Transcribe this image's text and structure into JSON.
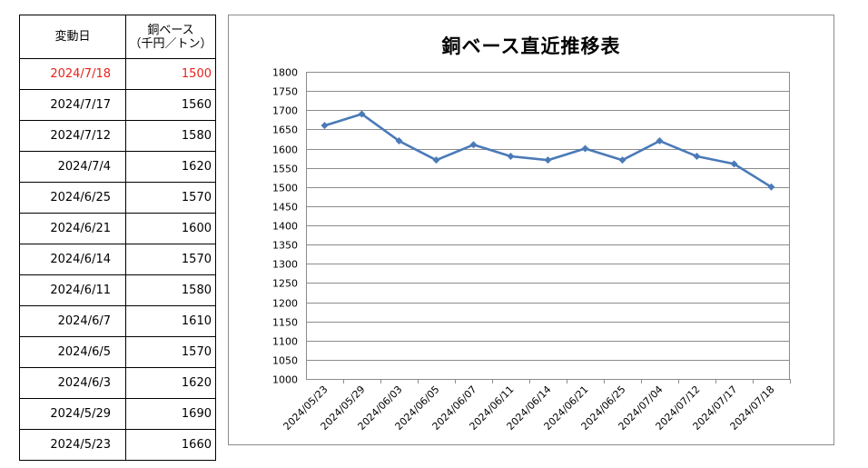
{
  "table": {
    "header_date": "変動日",
    "header_price_line1": "銅ベース",
    "header_price_line2": "（千円／トン）",
    "rows": [
      {
        "date": "2024/7/18",
        "price": "1500"
      },
      {
        "date": "2024/7/17",
        "price": "1560"
      },
      {
        "date": "2024/7/12",
        "price": "1580"
      },
      {
        "date": "2024/7/4",
        "price": "1620"
      },
      {
        "date": "2024/6/25",
        "price": "1570"
      },
      {
        "date": "2024/6/21",
        "price": "1600"
      },
      {
        "date": "2024/6/14",
        "price": "1570"
      },
      {
        "date": "2024/6/11",
        "price": "1580"
      },
      {
        "date": "2024/6/7",
        "price": "1610"
      },
      {
        "date": "2024/6/5",
        "price": "1570"
      },
      {
        "date": "2024/6/3",
        "price": "1620"
      },
      {
        "date": "2024/5/29",
        "price": "1690"
      },
      {
        "date": "2024/5/23",
        "price": "1660"
      }
    ],
    "highlight_color": "#e8211b"
  },
  "chart_data": {
    "type": "line",
    "title": "銅ベース直近推移表",
    "xlabel": "",
    "ylabel": "",
    "categories": [
      "2024/05/23",
      "2024/05/29",
      "2024/06/03",
      "2024/06/05",
      "2024/06/07",
      "2024/06/11",
      "2024/06/14",
      "2024/06/21",
      "2024/06/25",
      "2024/07/04",
      "2024/07/12",
      "2024/07/17",
      "2024/07/18"
    ],
    "series": [
      {
        "values": [
          1660,
          1690,
          1620,
          1570,
          1610,
          1580,
          1570,
          1600,
          1570,
          1620,
          1580,
          1560,
          1500
        ],
        "color": "#4a7ab8",
        "marker": "diamond"
      }
    ],
    "ylim": [
      1000,
      1800
    ],
    "ytick_step": 50,
    "grid": "horizontal",
    "legend": "none"
  }
}
